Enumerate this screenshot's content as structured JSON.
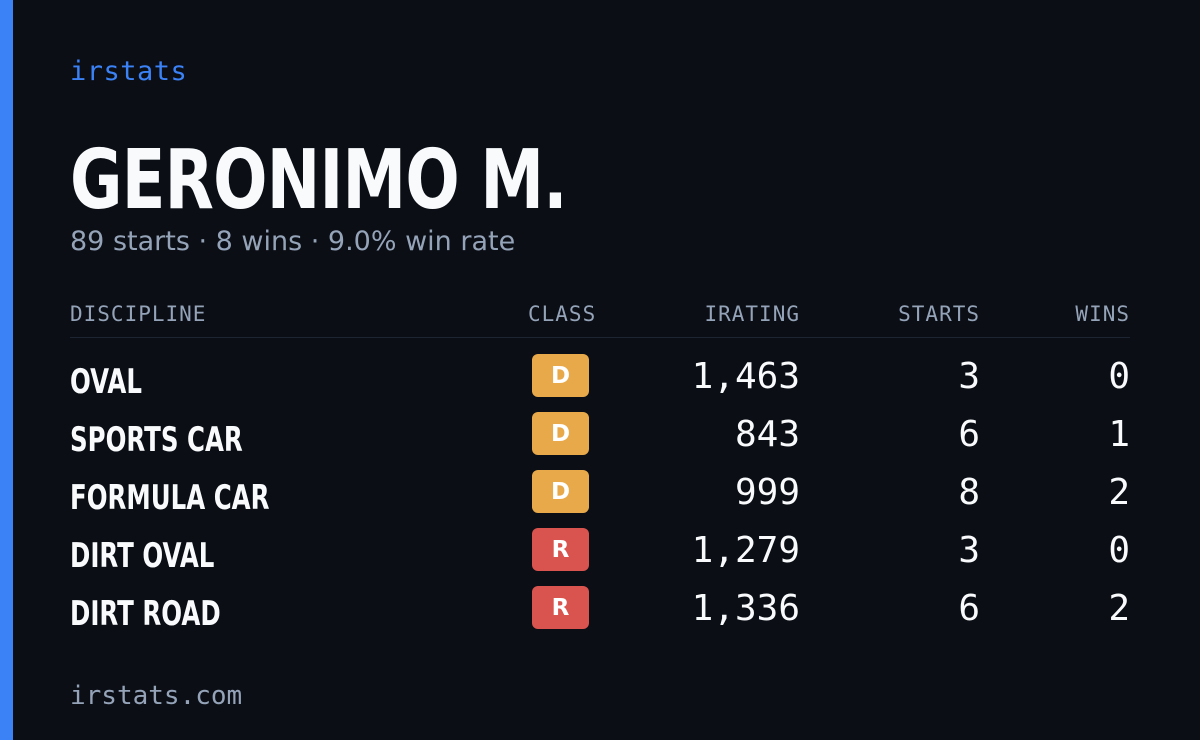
{
  "brand": "irstats",
  "driver": {
    "name": "GERONIMO M.",
    "summary": "89 starts · 8 wins · 9.0% win rate"
  },
  "table": {
    "headers": {
      "discipline": "DISCIPLINE",
      "class": "CLASS",
      "irating": "IRATING",
      "starts": "STARTS",
      "wins": "WINS"
    },
    "rows": [
      {
        "discipline": "OVAL",
        "class": "D",
        "irating": "1,463",
        "starts": "3",
        "wins": "0"
      },
      {
        "discipline": "SPORTS CAR",
        "class": "D",
        "irating": "843",
        "starts": "6",
        "wins": "1"
      },
      {
        "discipline": "FORMULA CAR",
        "class": "D",
        "irating": "999",
        "starts": "8",
        "wins": "2"
      },
      {
        "discipline": "DIRT OVAL",
        "class": "R",
        "irating": "1,279",
        "starts": "3",
        "wins": "0"
      },
      {
        "discipline": "DIRT ROAD",
        "class": "R",
        "irating": "1,336",
        "starts": "6",
        "wins": "2"
      }
    ]
  },
  "class_colors": {
    "D": "#e8a94a",
    "R": "#d9534f"
  },
  "colors": {
    "accent": "#3b82f6",
    "background": "#0b0e15"
  },
  "footer": "irstats.com"
}
